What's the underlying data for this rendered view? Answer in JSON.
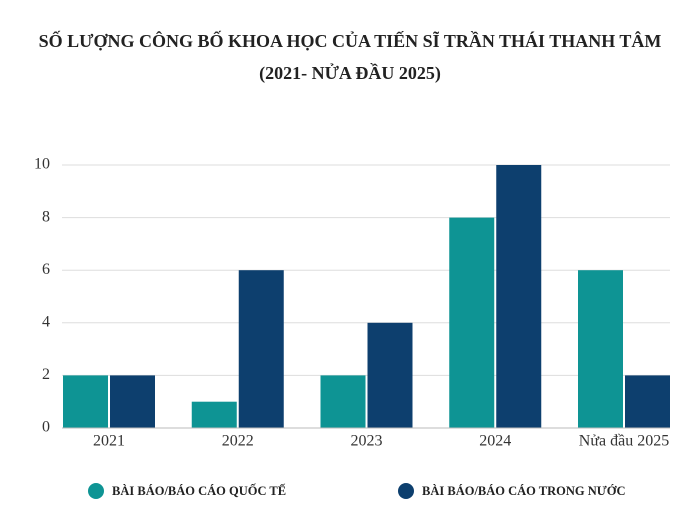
{
  "chart_data": {
    "type": "bar",
    "title": [
      "SỐ LƯỢNG CÔNG BỐ KHOA HỌC CỦA TIẾN SĨ TRẦN THÁI THANH TÂM",
      "(2021- NỬA ĐẦU 2025)"
    ],
    "categories": [
      "2021",
      "2022",
      "2023",
      "2024",
      "Nửa đầu 2025"
    ],
    "series": [
      {
        "name": "BÀI BÁO/BÁO CÁO QUỐC TẾ",
        "color": "#0e9494",
        "values": [
          2,
          1,
          2,
          8,
          6
        ]
      },
      {
        "name": "BÀI BÁO/BÁO CÁO TRONG NƯỚC",
        "color": "#0d3f6e",
        "values": [
          2,
          6,
          4,
          10,
          2
        ]
      }
    ],
    "ylim": [
      0,
      10
    ],
    "yticks": [
      0,
      2,
      4,
      6,
      8,
      10
    ],
    "grid": true,
    "legend": "bottom"
  }
}
